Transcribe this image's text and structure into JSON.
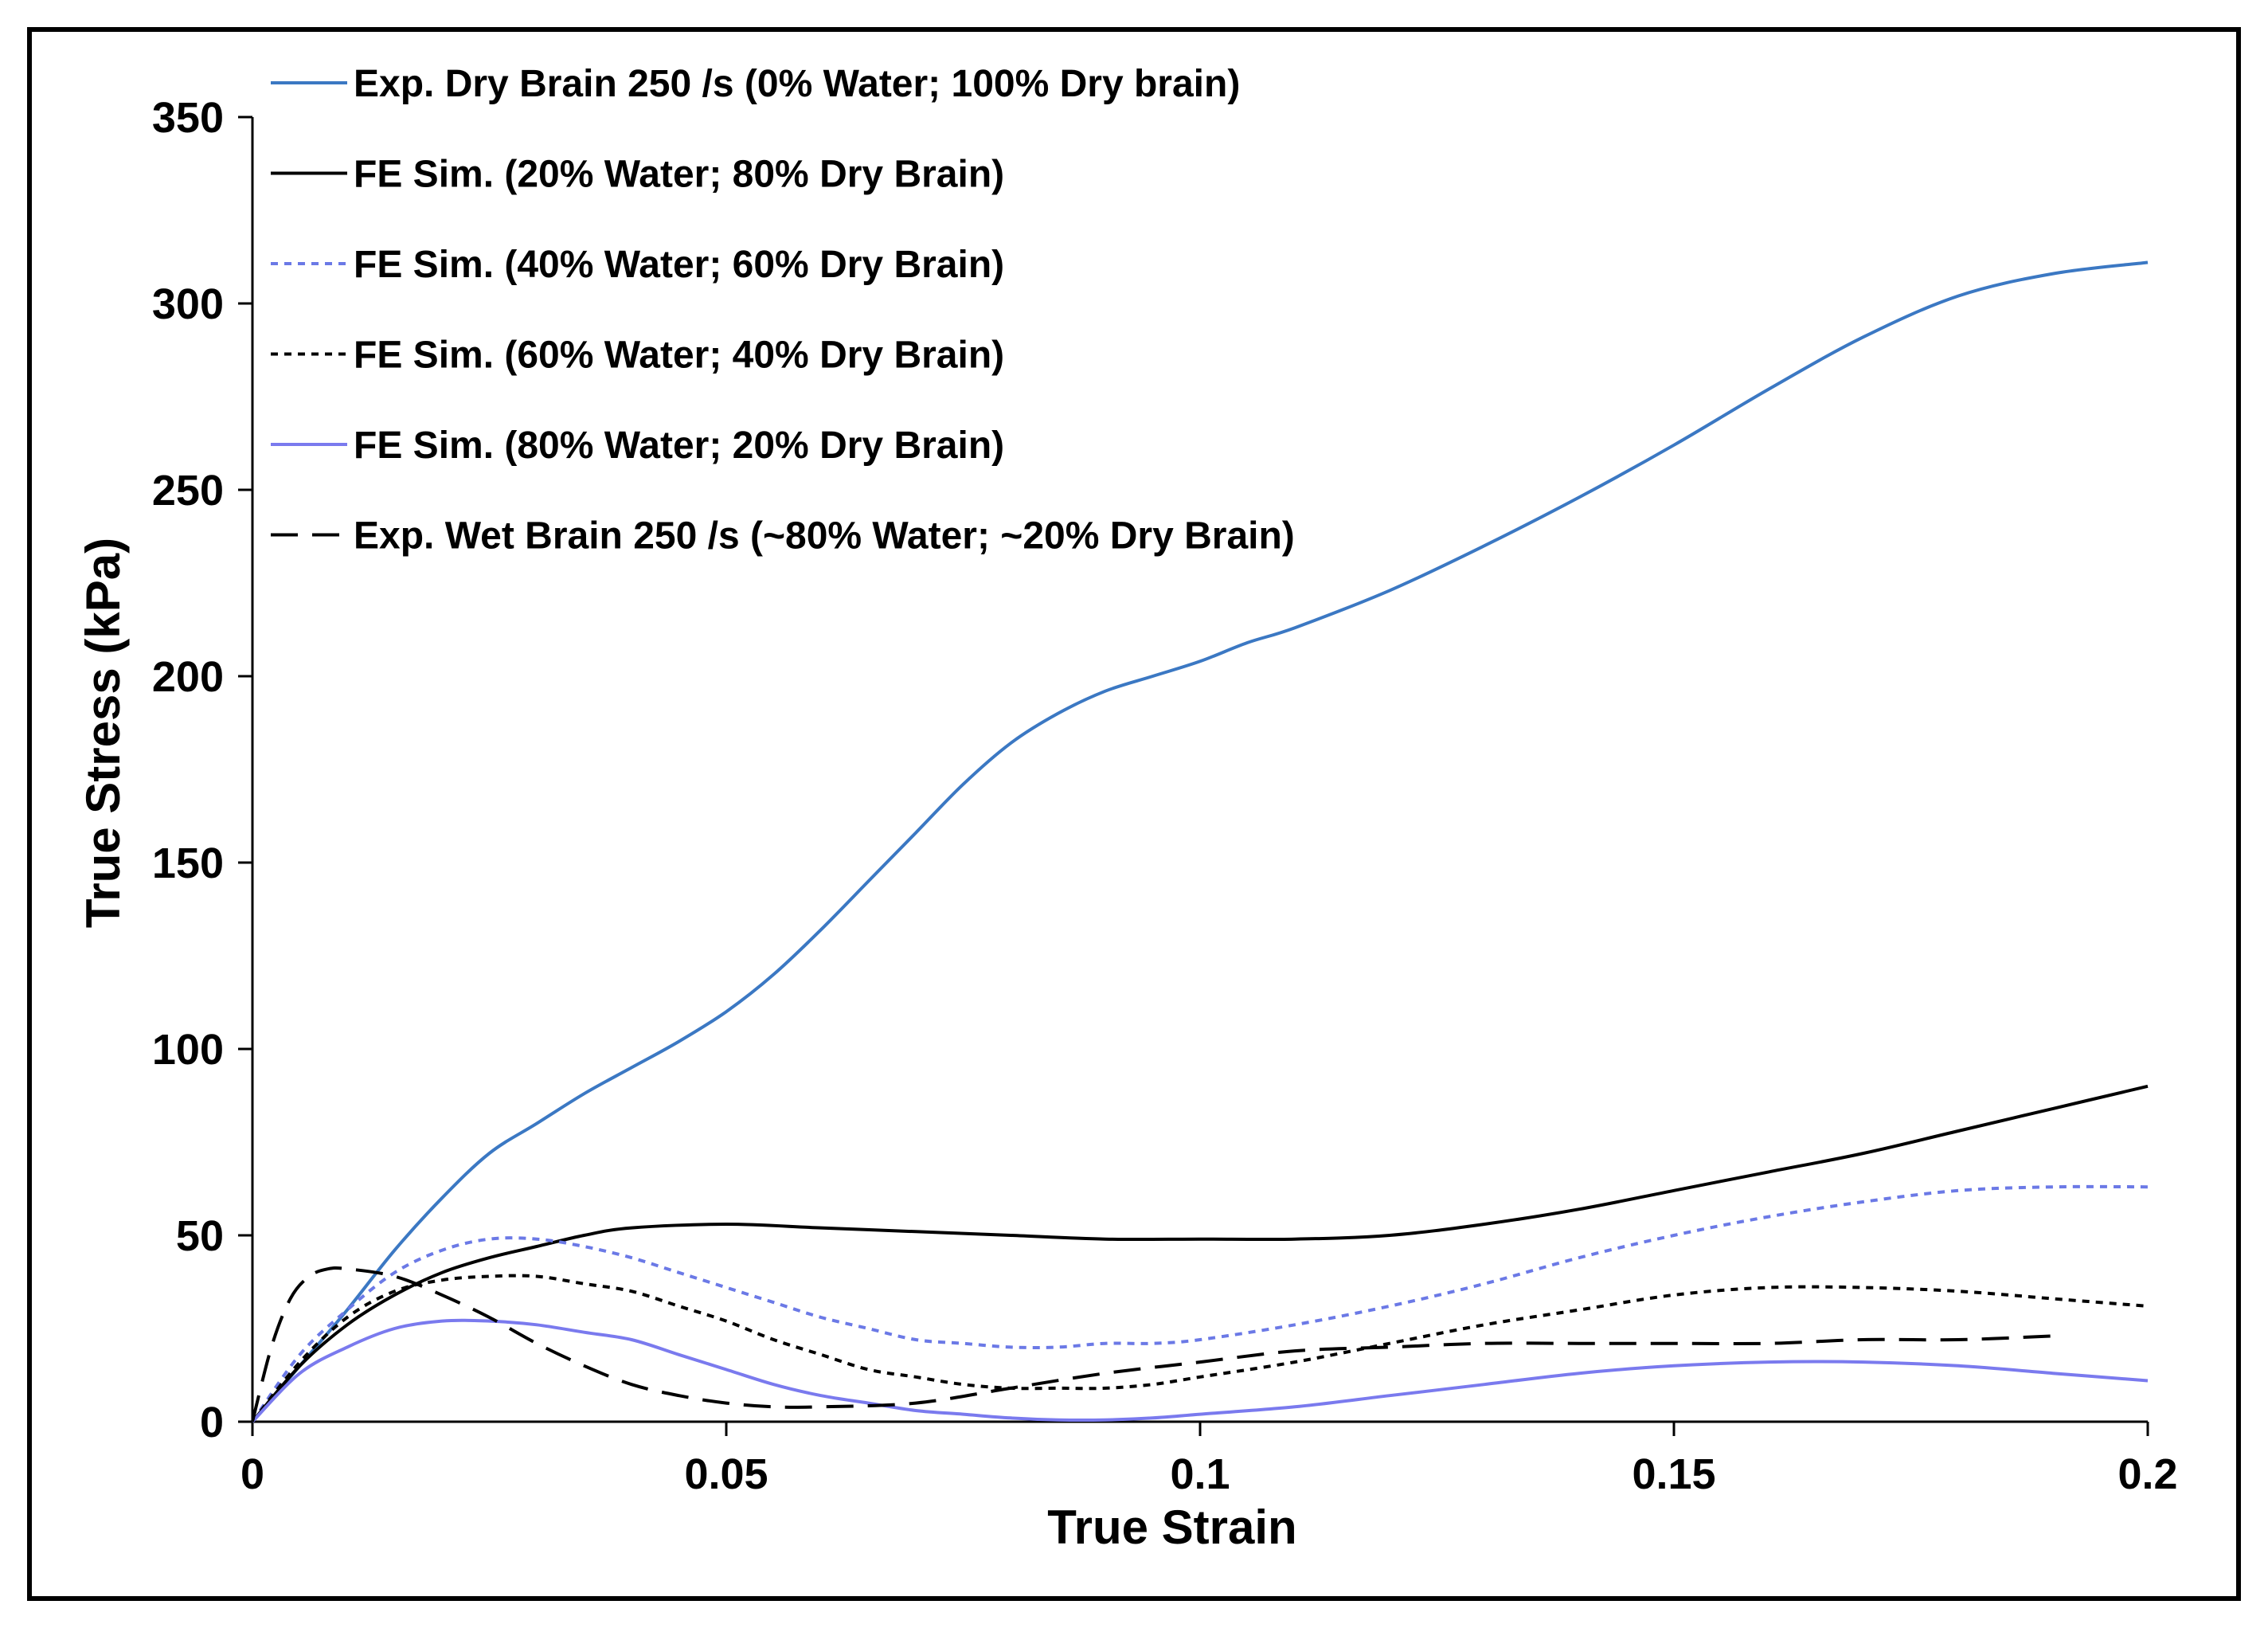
{
  "chart_data": {
    "type": "line",
    "title": "",
    "xlabel": "True Strain",
    "ylabel": "True Stress (kPa)",
    "xlim": [
      0,
      0.2
    ],
    "ylim": [
      0,
      350
    ],
    "x_ticks": [
      "0",
      "0.05",
      "0.1",
      "0.15",
      "0.2"
    ],
    "y_ticks": [
      "0",
      "50",
      "100",
      "150",
      "200",
      "250",
      "300",
      "350"
    ],
    "grid": false,
    "legend_position": "top-left",
    "series": [
      {
        "name": "Exp. Dry Brain 250 /s (0% Water; 100% Dry brain)",
        "color": "#3b78c3",
        "dash": "solid",
        "points": [
          [
            0,
            0
          ],
          [
            0.005,
            15
          ],
          [
            0.01,
            30
          ],
          [
            0.015,
            46
          ],
          [
            0.02,
            60
          ],
          [
            0.025,
            72
          ],
          [
            0.03,
            80
          ],
          [
            0.035,
            88
          ],
          [
            0.04,
            95
          ],
          [
            0.045,
            102
          ],
          [
            0.05,
            110
          ],
          [
            0.055,
            120
          ],
          [
            0.06,
            132
          ],
          [
            0.065,
            145
          ],
          [
            0.07,
            158
          ],
          [
            0.075,
            171
          ],
          [
            0.08,
            182
          ],
          [
            0.085,
            190
          ],
          [
            0.09,
            196
          ],
          [
            0.095,
            200
          ],
          [
            0.1,
            204
          ],
          [
            0.105,
            209
          ],
          [
            0.11,
            213
          ],
          [
            0.12,
            223
          ],
          [
            0.13,
            235
          ],
          [
            0.14,
            248
          ],
          [
            0.15,
            262
          ],
          [
            0.16,
            277
          ],
          [
            0.17,
            291
          ],
          [
            0.18,
            302
          ],
          [
            0.19,
            308
          ],
          [
            0.2,
            311
          ]
        ]
      },
      {
        "name": "FE Sim. (20% Water; 80% Dry Brain)",
        "color": "#000000",
        "dash": "solid",
        "points": [
          [
            0,
            0
          ],
          [
            0.005,
            15
          ],
          [
            0.01,
            26
          ],
          [
            0.015,
            34
          ],
          [
            0.02,
            40
          ],
          [
            0.025,
            44
          ],
          [
            0.03,
            47
          ],
          [
            0.035,
            50
          ],
          [
            0.04,
            52
          ],
          [
            0.05,
            53
          ],
          [
            0.06,
            52
          ],
          [
            0.07,
            51
          ],
          [
            0.08,
            50
          ],
          [
            0.09,
            49
          ],
          [
            0.1,
            49
          ],
          [
            0.11,
            49
          ],
          [
            0.12,
            50
          ],
          [
            0.13,
            53
          ],
          [
            0.14,
            57
          ],
          [
            0.15,
            62
          ],
          [
            0.16,
            67
          ],
          [
            0.17,
            72
          ],
          [
            0.18,
            78
          ],
          [
            0.19,
            84
          ],
          [
            0.2,
            90
          ]
        ]
      },
      {
        "name": "FE Sim. (40% Water; 60% Dry Brain)",
        "color": "#6b79e6",
        "dash": "short",
        "points": [
          [
            0,
            0
          ],
          [
            0.005,
            18
          ],
          [
            0.01,
            30
          ],
          [
            0.015,
            40
          ],
          [
            0.02,
            46
          ],
          [
            0.025,
            49
          ],
          [
            0.03,
            49
          ],
          [
            0.035,
            47
          ],
          [
            0.04,
            44
          ],
          [
            0.045,
            40
          ],
          [
            0.05,
            36
          ],
          [
            0.055,
            32
          ],
          [
            0.06,
            28
          ],
          [
            0.065,
            25
          ],
          [
            0.07,
            22
          ],
          [
            0.075,
            21
          ],
          [
            0.08,
            20
          ],
          [
            0.085,
            20
          ],
          [
            0.09,
            21
          ],
          [
            0.095,
            21
          ],
          [
            0.1,
            22
          ],
          [
            0.11,
            26
          ],
          [
            0.12,
            31
          ],
          [
            0.13,
            37
          ],
          [
            0.14,
            44
          ],
          [
            0.15,
            50
          ],
          [
            0.16,
            55
          ],
          [
            0.17,
            59
          ],
          [
            0.18,
            62
          ],
          [
            0.19,
            63
          ],
          [
            0.2,
            63
          ]
        ]
      },
      {
        "name": "FE Sim. (60% Water; 40% Dry Brain)",
        "color": "#000000",
        "dash": "short",
        "points": [
          [
            0,
            0
          ],
          [
            0.005,
            16
          ],
          [
            0.01,
            28
          ],
          [
            0.015,
            35
          ],
          [
            0.02,
            38
          ],
          [
            0.025,
            39
          ],
          [
            0.03,
            39
          ],
          [
            0.035,
            37
          ],
          [
            0.04,
            35
          ],
          [
            0.045,
            31
          ],
          [
            0.05,
            27
          ],
          [
            0.055,
            22
          ],
          [
            0.06,
            18
          ],
          [
            0.065,
            14
          ],
          [
            0.07,
            12
          ],
          [
            0.075,
            10
          ],
          [
            0.08,
            9
          ],
          [
            0.085,
            9
          ],
          [
            0.09,
            9
          ],
          [
            0.095,
            10
          ],
          [
            0.1,
            12
          ],
          [
            0.11,
            16
          ],
          [
            0.12,
            21
          ],
          [
            0.13,
            26
          ],
          [
            0.14,
            30
          ],
          [
            0.15,
            34
          ],
          [
            0.16,
            36
          ],
          [
            0.17,
            36
          ],
          [
            0.18,
            35
          ],
          [
            0.19,
            33
          ],
          [
            0.2,
            31
          ]
        ]
      },
      {
        "name": "FE Sim. (80% Water; 20% Dry Brain)",
        "color": "#7a7aee",
        "dash": "solid",
        "points": [
          [
            0,
            0
          ],
          [
            0.005,
            13
          ],
          [
            0.01,
            20
          ],
          [
            0.015,
            25
          ],
          [
            0.02,
            27
          ],
          [
            0.025,
            27
          ],
          [
            0.03,
            26
          ],
          [
            0.035,
            24
          ],
          [
            0.04,
            22
          ],
          [
            0.045,
            18
          ],
          [
            0.05,
            14
          ],
          [
            0.055,
            10
          ],
          [
            0.06,
            7
          ],
          [
            0.065,
            5
          ],
          [
            0.07,
            3
          ],
          [
            0.075,
            2
          ],
          [
            0.08,
            1
          ],
          [
            0.085,
            0.5
          ],
          [
            0.09,
            0.5
          ],
          [
            0.095,
            1
          ],
          [
            0.1,
            2
          ],
          [
            0.11,
            4
          ],
          [
            0.12,
            7
          ],
          [
            0.13,
            10
          ],
          [
            0.14,
            13
          ],
          [
            0.15,
            15
          ],
          [
            0.16,
            16
          ],
          [
            0.17,
            16
          ],
          [
            0.18,
            15
          ],
          [
            0.19,
            13
          ],
          [
            0.2,
            11
          ]
        ]
      },
      {
        "name": "Exp. Wet Brain 250 /s (~80% Water; ~20% Dry Brain)",
        "color": "#000000",
        "dash": "long",
        "points": [
          [
            0,
            0
          ],
          [
            0.002,
            20
          ],
          [
            0.004,
            33
          ],
          [
            0.006,
            39
          ],
          [
            0.008,
            41
          ],
          [
            0.01,
            41
          ],
          [
            0.015,
            39
          ],
          [
            0.02,
            34
          ],
          [
            0.025,
            28
          ],
          [
            0.03,
            21
          ],
          [
            0.035,
            15
          ],
          [
            0.04,
            10
          ],
          [
            0.045,
            7
          ],
          [
            0.05,
            5
          ],
          [
            0.055,
            4
          ],
          [
            0.06,
            4
          ],
          [
            0.07,
            5
          ],
          [
            0.08,
            9
          ],
          [
            0.09,
            13
          ],
          [
            0.1,
            16
          ],
          [
            0.11,
            19
          ],
          [
            0.12,
            20
          ],
          [
            0.13,
            21
          ],
          [
            0.14,
            21
          ],
          [
            0.15,
            21
          ],
          [
            0.16,
            21
          ],
          [
            0.17,
            22
          ],
          [
            0.18,
            22
          ],
          [
            0.19,
            23
          ]
        ]
      }
    ]
  }
}
